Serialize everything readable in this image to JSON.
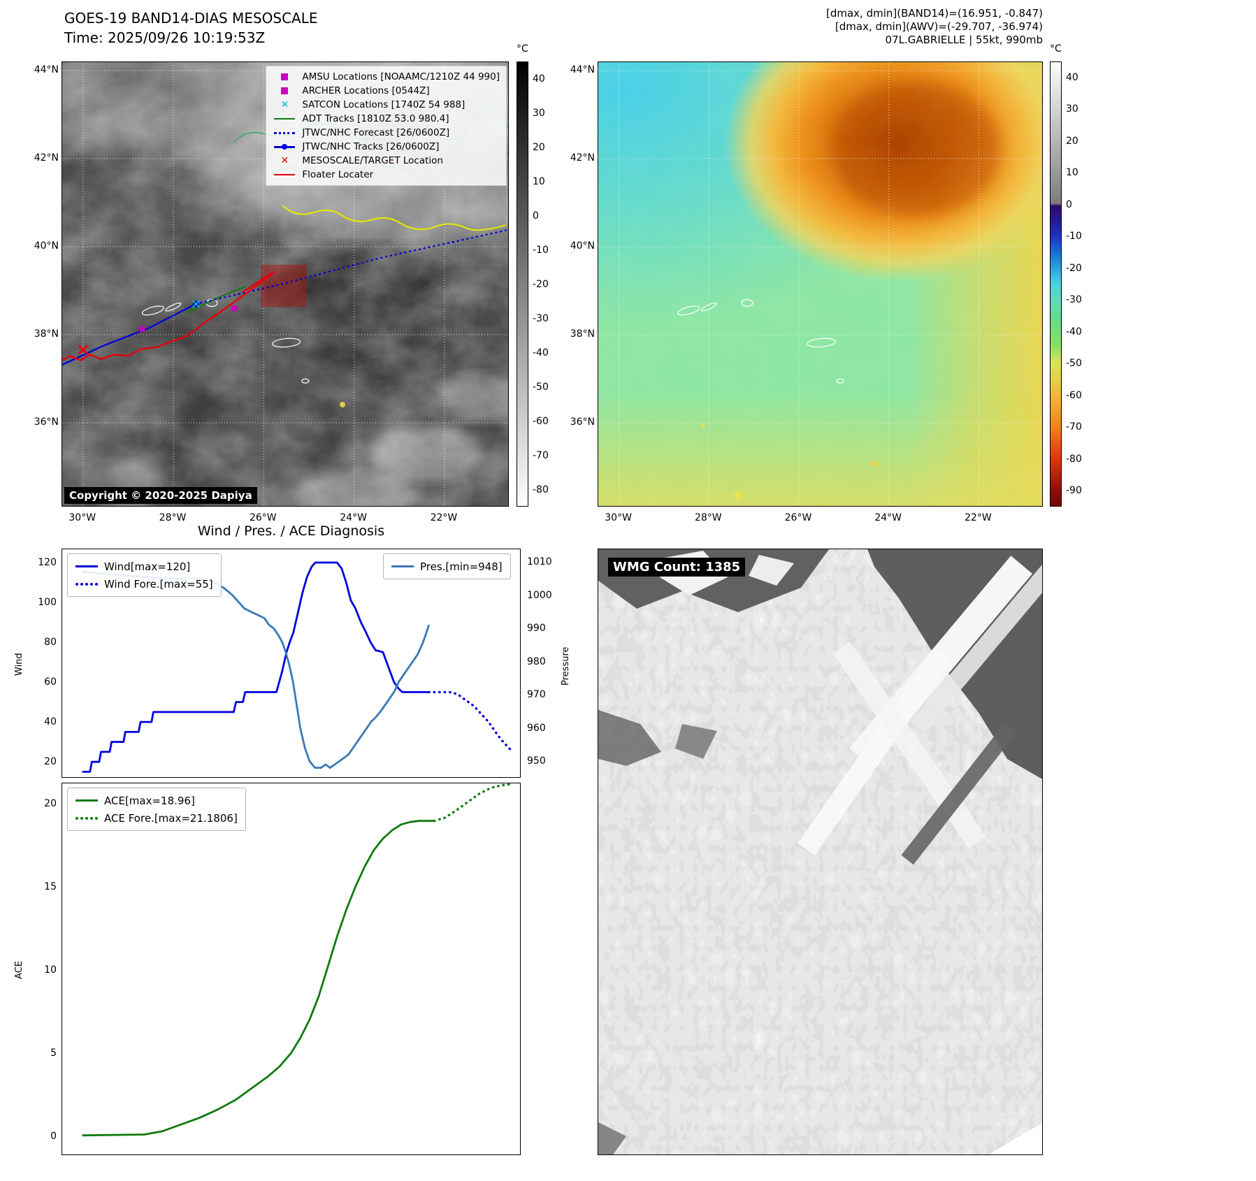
{
  "panel_tl": {
    "title1": "GOES-19 BAND14-DIAS MESOSCALE",
    "title2": "Time: 2025/09/26 10:19:53Z",
    "colorbar_label": "°C",
    "colorbar_ticks": [
      "40",
      "30",
      "20",
      "10",
      "0",
      "-10",
      "-20",
      "-30",
      "-40",
      "-50",
      "-60",
      "-70",
      "-80"
    ],
    "copyright": "Copyright © 2020-2025 Dapiya",
    "legend": [
      {
        "label": "AMSU Locations [NOAAMC/1210Z 44 990]",
        "marker": "square",
        "color": "#c400c4"
      },
      {
        "label": "ARCHER Locations [0544Z]",
        "marker": "square",
        "color": "#c400c4"
      },
      {
        "label": "SATCON Locations [1740Z 54 988]",
        "marker": "x",
        "color": "#00b8b8"
      },
      {
        "label": "ADT Tracks [1810Z 53.0 980.4]",
        "marker": "line",
        "color": "#107a10"
      },
      {
        "label": "JTWC/NHC Forecast [26/0600Z]",
        "marker": "dotted",
        "color": "#0000dd"
      },
      {
        "label": "JTWC/NHC Tracks [26/0600Z]",
        "marker": "line-dot",
        "color": "#0000dd"
      },
      {
        "label": "MESOSCALE/TARGET Location",
        "marker": "x",
        "color": "#e8000b"
      },
      {
        "label": "Floater Locater",
        "marker": "line",
        "color": "#e8000b"
      }
    ],
    "tracks": {
      "floater": {
        "color": "#e8000b",
        "points": [
          [
            -30.52,
            37.38
          ],
          [
            -30.3,
            37.52
          ],
          [
            -30.05,
            37.42
          ],
          [
            -29.85,
            37.55
          ],
          [
            -29.6,
            37.45
          ],
          [
            -29.3,
            37.55
          ],
          [
            -29.0,
            37.52
          ],
          [
            -28.7,
            37.68
          ],
          [
            -28.35,
            37.72
          ],
          [
            -28.05,
            37.85
          ],
          [
            -27.75,
            37.95
          ],
          [
            -27.5,
            38.12
          ],
          [
            -27.28,
            38.3
          ],
          [
            -27.05,
            38.45
          ],
          [
            -26.82,
            38.62
          ],
          [
            -26.6,
            38.78
          ],
          [
            -26.38,
            38.95
          ],
          [
            -26.15,
            39.12
          ],
          [
            -25.95,
            39.28
          ],
          [
            -25.78,
            39.42
          ],
          [
            -26.45,
            38.98
          ],
          [
            -25.82,
            39.4
          ]
        ]
      },
      "jtwc": {
        "color": "#0000dd",
        "points": [
          [
            -30.5,
            37.3
          ],
          [
            -29.55,
            37.75
          ],
          [
            -28.55,
            38.15
          ],
          [
            -27.5,
            38.7
          ]
        ]
      },
      "jtwc_forecast": {
        "color": "#0000dd",
        "points": [
          [
            -27.5,
            38.7
          ],
          [
            -25.6,
            39.15
          ],
          [
            -23.4,
            39.75
          ],
          [
            -20.6,
            40.38
          ]
        ]
      },
      "adt": {
        "color": "#107a10",
        "points": [
          [
            -27.7,
            38.5
          ],
          [
            -27.0,
            38.85
          ],
          [
            -26.4,
            39.1
          ]
        ]
      },
      "target_box": {
        "color": "#b01414",
        "lon_range": [
          -26.06,
          -25.05
        ],
        "lat_range": [
          38.63,
          39.59
        ]
      },
      "mesoscale_x": {
        "color": "#e8000b",
        "point": [
          -30.0,
          37.66
        ]
      },
      "amsu_points": {
        "color": "#c400c4",
        "points": [
          [
            -28.69,
            38.13
          ]
        ]
      },
      "archer_points": {
        "color": "#c400c4",
        "points": [
          [
            -26.65,
            38.6
          ]
        ]
      },
      "satcon_points": {
        "color": "#00b8b8",
        "points": [
          [
            -27.5,
            38.7
          ]
        ]
      }
    }
  },
  "geo_ticks": {
    "lat": [
      "44°N",
      "42°N",
      "40°N",
      "38°N",
      "36°N"
    ],
    "lon": [
      "30°W",
      "28°W",
      "26°W",
      "24°W",
      "22°W"
    ],
    "lat_values": [
      44,
      42,
      40,
      38,
      36
    ],
    "lon_values": [
      -30,
      -28,
      -26,
      -24,
      -22
    ]
  },
  "panel_tr": {
    "header1": "[dmax, dmin](BAND14)=(16.951, -0.847)",
    "header2": "[dmax, dmin](AWV)=(-29.707, -36.974)",
    "header3": "07L.GABRIELLE | 55kt, 990mb",
    "colorbar_label": "°C",
    "colorbar_ticks": [
      "40",
      "30",
      "20",
      "10",
      "0",
      "-10",
      "-20",
      "-30",
      "-40",
      "-50",
      "-60",
      "-70",
      "-80",
      "-90"
    ]
  },
  "charts": {
    "title": "Wind / Pres. / ACE Diagnosis"
  },
  "chart_data": [
    {
      "type": "line",
      "title": "Wind / Pres. / ACE Diagnosis",
      "ylabel_left": "Wind",
      "ylabel_right": "Pressure",
      "yticks_left": [
        20,
        40,
        60,
        80,
        100,
        120
      ],
      "yticks_right": [
        950,
        960,
        970,
        980,
        990,
        1000,
        1010
      ],
      "ylim_left": [
        12,
        127
      ],
      "ylim_right": [
        945,
        1014
      ],
      "series": [
        {
          "name": "Wind[max=120]",
          "axis": "left",
          "style": "solid",
          "color": "#0000dd",
          "points": [
            [
              0.045,
              15
            ],
            [
              0.062,
              15
            ],
            [
              0.066,
              20
            ],
            [
              0.082,
              20
            ],
            [
              0.086,
              25
            ],
            [
              0.105,
              25
            ],
            [
              0.109,
              30
            ],
            [
              0.135,
              30
            ],
            [
              0.139,
              35
            ],
            [
              0.168,
              35
            ],
            [
              0.172,
              40
            ],
            [
              0.196,
              40
            ],
            [
              0.2,
              45
            ],
            [
              0.375,
              45
            ],
            [
              0.38,
              50
            ],
            [
              0.395,
              50
            ],
            [
              0.4,
              55
            ],
            [
              0.468,
              55
            ],
            [
              0.48,
              65
            ],
            [
              0.49,
              75
            ],
            [
              0.497,
              80
            ],
            [
              0.505,
              85
            ],
            [
              0.515,
              95
            ],
            [
              0.525,
              105
            ],
            [
              0.535,
              113
            ],
            [
              0.545,
              118
            ],
            [
              0.553,
              120
            ],
            [
              0.6,
              120
            ],
            [
              0.61,
              117
            ],
            [
              0.62,
              110
            ],
            [
              0.63,
              101
            ],
            [
              0.64,
              97
            ],
            [
              0.652,
              90
            ],
            [
              0.663,
              85
            ],
            [
              0.673,
              80
            ],
            [
              0.684,
              76
            ],
            [
              0.7,
              75
            ],
            [
              0.708,
              70
            ],
            [
              0.716,
              65
            ],
            [
              0.724,
              60
            ],
            [
              0.733,
              57
            ],
            [
              0.742,
              55
            ],
            [
              0.8,
              55
            ]
          ]
        },
        {
          "name": "Wind Fore.[max=55]",
          "axis": "left",
          "style": "dotted",
          "color": "#0000dd",
          "points": [
            [
              0.8,
              55
            ],
            [
              0.845,
              55
            ],
            [
              0.862,
              54
            ],
            [
              0.88,
              51
            ],
            [
              0.898,
              48
            ],
            [
              0.914,
              44
            ],
            [
              0.93,
              40
            ],
            [
              0.945,
              35
            ],
            [
              0.958,
              31
            ],
            [
              0.97,
              28
            ],
            [
              0.982,
              25
            ]
          ]
        },
        {
          "name": "Pres.[min=948]",
          "axis": "right",
          "style": "solid",
          "color": "#3a79b3",
          "points": [
            [
              0.045,
              1007
            ],
            [
              0.13,
              1006
            ],
            [
              0.23,
              1005
            ],
            [
              0.3,
              1005
            ],
            [
              0.33,
              1004
            ],
            [
              0.355,
              1002
            ],
            [
              0.372,
              1000
            ],
            [
              0.385,
              998
            ],
            [
              0.398,
              996
            ],
            [
              0.412,
              995
            ],
            [
              0.428,
              994
            ],
            [
              0.442,
              993
            ],
            [
              0.452,
              991
            ],
            [
              0.462,
              990
            ],
            [
              0.472,
              988
            ],
            [
              0.48,
              986
            ],
            [
              0.488,
              983
            ],
            [
              0.496,
              979
            ],
            [
              0.504,
              974
            ],
            [
              0.512,
              967
            ],
            [
              0.52,
              960
            ],
            [
              0.53,
              954
            ],
            [
              0.54,
              950
            ],
            [
              0.552,
              948
            ],
            [
              0.565,
              948
            ],
            [
              0.575,
              949
            ],
            [
              0.585,
              948
            ],
            [
              0.595,
              949
            ],
            [
              0.605,
              950
            ],
            [
              0.615,
              951
            ],
            [
              0.625,
              952
            ],
            [
              0.635,
              954
            ],
            [
              0.645,
              956
            ],
            [
              0.655,
              958
            ],
            [
              0.665,
              960
            ],
            [
              0.675,
              962
            ],
            [
              0.683,
              963
            ],
            [
              0.695,
              965
            ],
            [
              0.705,
              967
            ],
            [
              0.715,
              969
            ],
            [
              0.725,
              971
            ],
            [
              0.735,
              974
            ],
            [
              0.745,
              976
            ],
            [
              0.755,
              978
            ],
            [
              0.765,
              980
            ],
            [
              0.775,
              982
            ],
            [
              0.785,
              985
            ],
            [
              0.793,
              988
            ],
            [
              0.8,
              991
            ]
          ]
        }
      ]
    },
    {
      "type": "line",
      "ylabel_left": "ACE",
      "yticks_left": [
        0,
        5,
        10,
        15,
        20
      ],
      "ylim_left": [
        -1.14,
        21.26
      ],
      "series": [
        {
          "name": "ACE[max=18.96]",
          "axis": "left",
          "style": "solid",
          "color": "#107a10",
          "points": [
            [
              0.045,
              0.05
            ],
            [
              0.18,
              0.1
            ],
            [
              0.22,
              0.3
            ],
            [
              0.26,
              0.7
            ],
            [
              0.3,
              1.1
            ],
            [
              0.34,
              1.6
            ],
            [
              0.38,
              2.2
            ],
            [
              0.42,
              3.0
            ],
            [
              0.45,
              3.6
            ],
            [
              0.475,
              4.2
            ],
            [
              0.5,
              5.0
            ],
            [
              0.52,
              5.9
            ],
            [
              0.54,
              7.0
            ],
            [
              0.56,
              8.4
            ],
            [
              0.58,
              10.2
            ],
            [
              0.6,
              12.0
            ],
            [
              0.62,
              13.6
            ],
            [
              0.64,
              15.0
            ],
            [
              0.66,
              16.2
            ],
            [
              0.68,
              17.2
            ],
            [
              0.7,
              17.9
            ],
            [
              0.72,
              18.4
            ],
            [
              0.74,
              18.75
            ],
            [
              0.76,
              18.9
            ],
            [
              0.778,
              18.96
            ],
            [
              0.812,
              18.96
            ]
          ]
        },
        {
          "name": "ACE Fore.[max=21.1806]",
          "axis": "left",
          "style": "dotted",
          "color": "#107a10",
          "points": [
            [
              0.812,
              18.96
            ],
            [
              0.835,
              19.15
            ],
            [
              0.86,
              19.6
            ],
            [
              0.885,
              20.1
            ],
            [
              0.91,
              20.6
            ],
            [
              0.935,
              20.95
            ],
            [
              0.958,
              21.1
            ],
            [
              0.98,
              21.18
            ]
          ]
        }
      ]
    }
  ],
  "panel_br": {
    "wmg_label": "WMG Count: 1385"
  }
}
